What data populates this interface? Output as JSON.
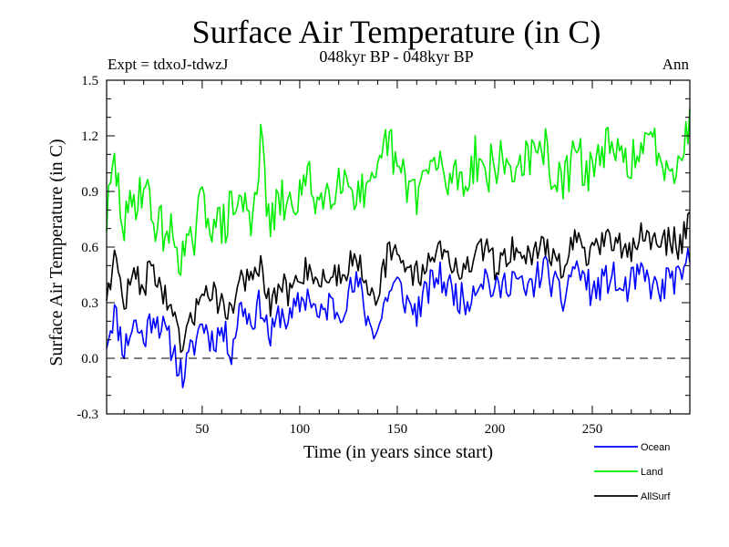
{
  "header": {
    "title": "Surface Air Temperature (in C)",
    "subtitle": "048kyr BP - 048kyr BP",
    "experiment": "Expt = tdxoJ-tdwzJ",
    "period": "Ann"
  },
  "chart_data": {
    "type": "line",
    "title": "Surface Air Temperature (in C)",
    "subtitle": "048kyr BP - 048kyr BP",
    "xlabel": "Time (in years since start)",
    "ylabel": "Surface Air Temperature (in C)",
    "xlim": [
      1,
      300
    ],
    "ylim": [
      -0.3,
      1.5
    ],
    "xticks": [
      50,
      100,
      150,
      200,
      250
    ],
    "yticks": [
      -0.3,
      0.0,
      0.3,
      0.6,
      0.9,
      1.2,
      1.5
    ],
    "ytick_labels": [
      "-0.3",
      "0.0",
      "0.3",
      "0.6",
      "0.9",
      "1.2",
      "1.5"
    ],
    "reference_line": {
      "y": 0.0,
      "style": "dashed"
    },
    "grid": false,
    "legend_position": "bottom-right",
    "series": [
      {
        "name": "Ocean",
        "color": "#0000ff",
        "values_every_5_years": {
          "x": [
            1,
            5,
            10,
            15,
            20,
            25,
            30,
            35,
            40,
            45,
            50,
            55,
            60,
            65,
            70,
            75,
            80,
            85,
            90,
            95,
            100,
            105,
            110,
            115,
            120,
            125,
            130,
            135,
            140,
            145,
            150,
            155,
            160,
            165,
            170,
            175,
            180,
            185,
            190,
            195,
            200,
            205,
            210,
            215,
            220,
            225,
            230,
            235,
            240,
            245,
            250,
            255,
            260,
            265,
            270,
            275,
            280,
            285,
            290,
            295,
            300
          ],
          "y": [
            0.1,
            0.25,
            0.05,
            0.2,
            0.1,
            0.25,
            0.15,
            0.05,
            -0.1,
            0.05,
            0.2,
            0.1,
            0.15,
            0.05,
            0.3,
            0.2,
            0.3,
            0.1,
            0.25,
            0.2,
            0.3,
            0.35,
            0.2,
            0.3,
            0.25,
            0.35,
            0.4,
            0.2,
            0.15,
            0.35,
            0.4,
            0.3,
            0.25,
            0.35,
            0.45,
            0.4,
            0.35,
            0.3,
            0.4,
            0.45,
            0.35,
            0.4,
            0.45,
            0.35,
            0.4,
            0.5,
            0.4,
            0.3,
            0.5,
            0.45,
            0.35,
            0.4,
            0.45,
            0.35,
            0.4,
            0.45,
            0.4,
            0.35,
            0.45,
            0.4,
            0.55
          ]
        }
      },
      {
        "name": "Land",
        "color": "#00ee00",
        "values_every_5_years": {
          "x": [
            1,
            5,
            10,
            15,
            20,
            25,
            30,
            35,
            40,
            45,
            50,
            55,
            60,
            65,
            70,
            75,
            80,
            85,
            90,
            95,
            100,
            105,
            110,
            115,
            120,
            125,
            130,
            135,
            140,
            145,
            150,
            155,
            160,
            165,
            170,
            175,
            180,
            185,
            190,
            195,
            200,
            205,
            210,
            215,
            220,
            225,
            230,
            235,
            240,
            245,
            250,
            255,
            260,
            265,
            270,
            275,
            280,
            285,
            290,
            295,
            300
          ],
          "y": [
            0.75,
            1.05,
            0.7,
            0.85,
            0.95,
            0.75,
            0.7,
            0.65,
            0.55,
            0.6,
            0.85,
            0.75,
            0.7,
            0.8,
            0.85,
            0.75,
            1.15,
            0.7,
            0.85,
            0.8,
            0.9,
            0.95,
            0.85,
            0.9,
            1.0,
            0.95,
            0.9,
            0.85,
            0.95,
            1.2,
            1.0,
            0.95,
            0.9,
            1.0,
            1.05,
            0.95,
            1.0,
            0.95,
            1.1,
            1.0,
            1.05,
            1.05,
            1.0,
            1.1,
            1.05,
            1.15,
            1.0,
            0.9,
            1.1,
            1.05,
            1.0,
            1.15,
            1.1,
            1.05,
            1.1,
            1.05,
            1.2,
            1.1,
            1.05,
            1.1,
            1.25
          ]
        }
      },
      {
        "name": "AllSurf",
        "color": "#000000",
        "values_every_5_years": {
          "x": [
            1,
            5,
            10,
            15,
            20,
            25,
            30,
            35,
            40,
            45,
            50,
            55,
            60,
            65,
            70,
            75,
            80,
            85,
            90,
            95,
            100,
            105,
            110,
            115,
            120,
            125,
            130,
            135,
            140,
            145,
            150,
            155,
            160,
            165,
            170,
            175,
            180,
            185,
            190,
            195,
            200,
            205,
            210,
            215,
            220,
            225,
            230,
            235,
            240,
            245,
            250,
            255,
            260,
            265,
            270,
            275,
            280,
            285,
            290,
            295,
            300
          ],
          "y": [
            0.35,
            0.55,
            0.3,
            0.45,
            0.4,
            0.5,
            0.35,
            0.2,
            0.05,
            0.2,
            0.4,
            0.35,
            0.3,
            0.25,
            0.45,
            0.4,
            0.5,
            0.25,
            0.4,
            0.35,
            0.45,
            0.5,
            0.4,
            0.45,
            0.45,
            0.5,
            0.55,
            0.4,
            0.35,
            0.55,
            0.55,
            0.5,
            0.45,
            0.5,
            0.6,
            0.55,
            0.5,
            0.45,
            0.55,
            0.6,
            0.5,
            0.55,
            0.6,
            0.55,
            0.55,
            0.65,
            0.55,
            0.45,
            0.65,
            0.6,
            0.55,
            0.6,
            0.65,
            0.6,
            0.6,
            0.65,
            0.65,
            0.6,
            0.65,
            0.6,
            0.8
          ]
        }
      }
    ]
  }
}
